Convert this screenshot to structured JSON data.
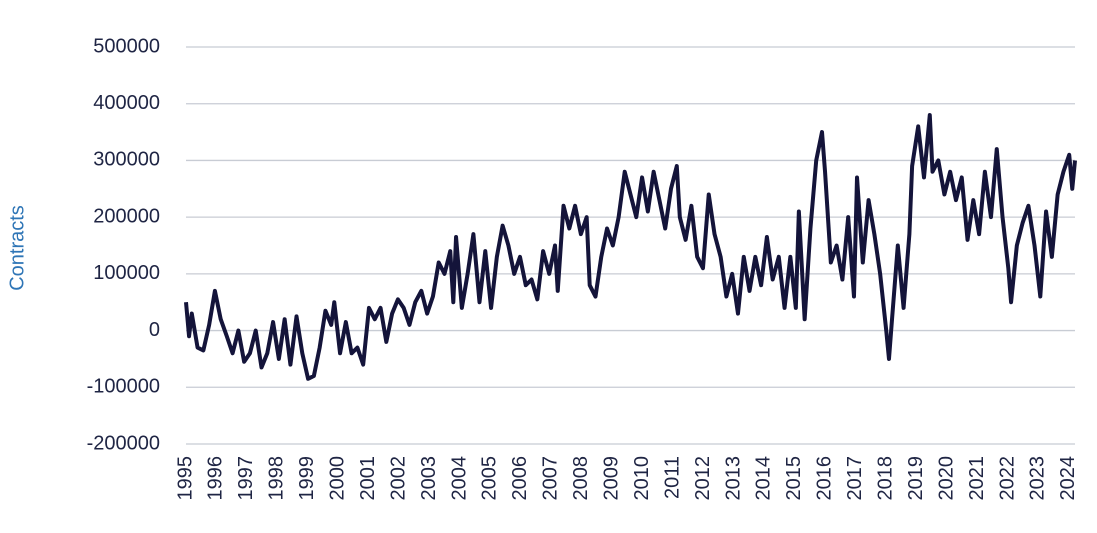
{
  "chart_data": {
    "type": "line",
    "y_label": "Contracts",
    "xlim": [
      1995,
      2024.2
    ],
    "xticks": [
      1995,
      1996,
      1997,
      1998,
      1999,
      2000,
      2001,
      2002,
      2003,
      2004,
      2005,
      2006,
      2007,
      2008,
      2009,
      2010,
      2011,
      2012,
      2013,
      2014,
      2015,
      2016,
      2017,
      2018,
      2019,
      2020,
      2021,
      2022,
      2023,
      2024
    ],
    "ylim": [
      -200000,
      500000
    ],
    "yticks": [
      -200000,
      -100000,
      0,
      100000,
      200000,
      300000,
      400000,
      500000
    ],
    "grid": true,
    "x": [
      1995.0,
      1995.1,
      1995.19,
      1995.38,
      1995.57,
      1995.76,
      1995.95,
      1996.14,
      1996.34,
      1996.53,
      1996.72,
      1996.91,
      1997.1,
      1997.29,
      1997.48,
      1997.67,
      1997.86,
      1998.05,
      1998.24,
      1998.43,
      1998.63,
      1998.82,
      1999.01,
      1999.2,
      1999.39,
      1999.58,
      1999.77,
      1999.87,
      2000.06,
      2000.25,
      2000.44,
      2000.63,
      2000.82,
      2001.01,
      2001.2,
      2001.39,
      2001.58,
      2001.77,
      2001.96,
      2002.15,
      2002.34,
      2002.53,
      2002.73,
      2002.92,
      2003.11,
      2003.3,
      2003.49,
      2003.68,
      2003.78,
      2003.87,
      2004.06,
      2004.25,
      2004.44,
      2004.64,
      2004.83,
      2005.02,
      2005.21,
      2005.4,
      2005.59,
      2005.78,
      2005.97,
      2006.16,
      2006.35,
      2006.54,
      2006.73,
      2006.93,
      2007.12,
      2007.21,
      2007.4,
      2007.59,
      2007.78,
      2007.97,
      2008.16,
      2008.26,
      2008.45,
      2008.64,
      2008.83,
      2009.02,
      2009.21,
      2009.41,
      2009.6,
      2009.79,
      2009.98,
      2010.17,
      2010.36,
      2010.55,
      2010.74,
      2010.93,
      2011.12,
      2011.22,
      2011.41,
      2011.6,
      2011.79,
      2011.98,
      2012.17,
      2012.36,
      2012.56,
      2012.75,
      2012.94,
      2013.13,
      2013.32,
      2013.51,
      2013.7,
      2013.89,
      2014.08,
      2014.27,
      2014.47,
      2014.66,
      2014.85,
      2015.03,
      2015.13,
      2015.32,
      2015.51,
      2015.7,
      2015.89,
      2015.99,
      2016.18,
      2016.37,
      2016.56,
      2016.75,
      2016.94,
      2017.04,
      2017.23,
      2017.42,
      2017.61,
      2017.8,
      2018.0,
      2018.09,
      2018.19,
      2018.38,
      2018.57,
      2018.76,
      2018.85,
      2019.05,
      2019.24,
      2019.43,
      2019.52,
      2019.71,
      2019.91,
      2020.1,
      2020.29,
      2020.48,
      2020.67,
      2020.86,
      2021.05,
      2021.24,
      2021.44,
      2021.63,
      2021.82,
      2022.01,
      2022.1,
      2022.29,
      2022.48,
      2022.67,
      2022.87,
      2023.06,
      2023.25,
      2023.44,
      2023.63,
      2023.82,
      2024.01,
      2024.11,
      2024.2
    ],
    "series": [
      {
        "color": "#14143a",
        "values": [
          50000,
          -10000,
          30000,
          -30000,
          -35000,
          10000,
          70000,
          20000,
          -10000,
          -40000,
          0,
          -55000,
          -40000,
          0,
          -65000,
          -40000,
          15000,
          -50000,
          20000,
          -60000,
          25000,
          -40000,
          -85000,
          -80000,
          -30000,
          35000,
          10000,
          50000,
          -40000,
          15000,
          -40000,
          -30000,
          -60000,
          40000,
          20000,
          40000,
          -20000,
          30000,
          55000,
          40000,
          10000,
          50000,
          70000,
          30000,
          60000,
          120000,
          100000,
          140000,
          50000,
          165000,
          40000,
          100000,
          170000,
          50000,
          140000,
          40000,
          130000,
          185000,
          150000,
          100000,
          130000,
          80000,
          90000,
          55000,
          140000,
          100000,
          150000,
          70000,
          220000,
          180000,
          220000,
          170000,
          200000,
          80000,
          60000,
          130000,
          180000,
          150000,
          200000,
          280000,
          240000,
          200000,
          270000,
          210000,
          280000,
          230000,
          180000,
          250000,
          290000,
          200000,
          160000,
          220000,
          130000,
          110000,
          240000,
          170000,
          130000,
          60000,
          100000,
          30000,
          130000,
          70000,
          130000,
          80000,
          165000,
          90000,
          130000,
          40000,
          130000,
          40000,
          210000,
          20000,
          180000,
          300000,
          350000,
          280000,
          120000,
          150000,
          90000,
          200000,
          60000,
          270000,
          120000,
          230000,
          170000,
          100000,
          0,
          -50000,
          20000,
          150000,
          40000,
          170000,
          290000,
          360000,
          270000,
          380000,
          280000,
          300000,
          240000,
          280000,
          230000,
          270000,
          160000,
          230000,
          170000,
          280000,
          200000,
          320000,
          200000,
          110000,
          50000,
          150000,
          190000,
          220000,
          150000,
          60000,
          210000,
          130000,
          240000,
          280000,
          310000,
          250000,
          300000
        ]
      }
    ]
  }
}
